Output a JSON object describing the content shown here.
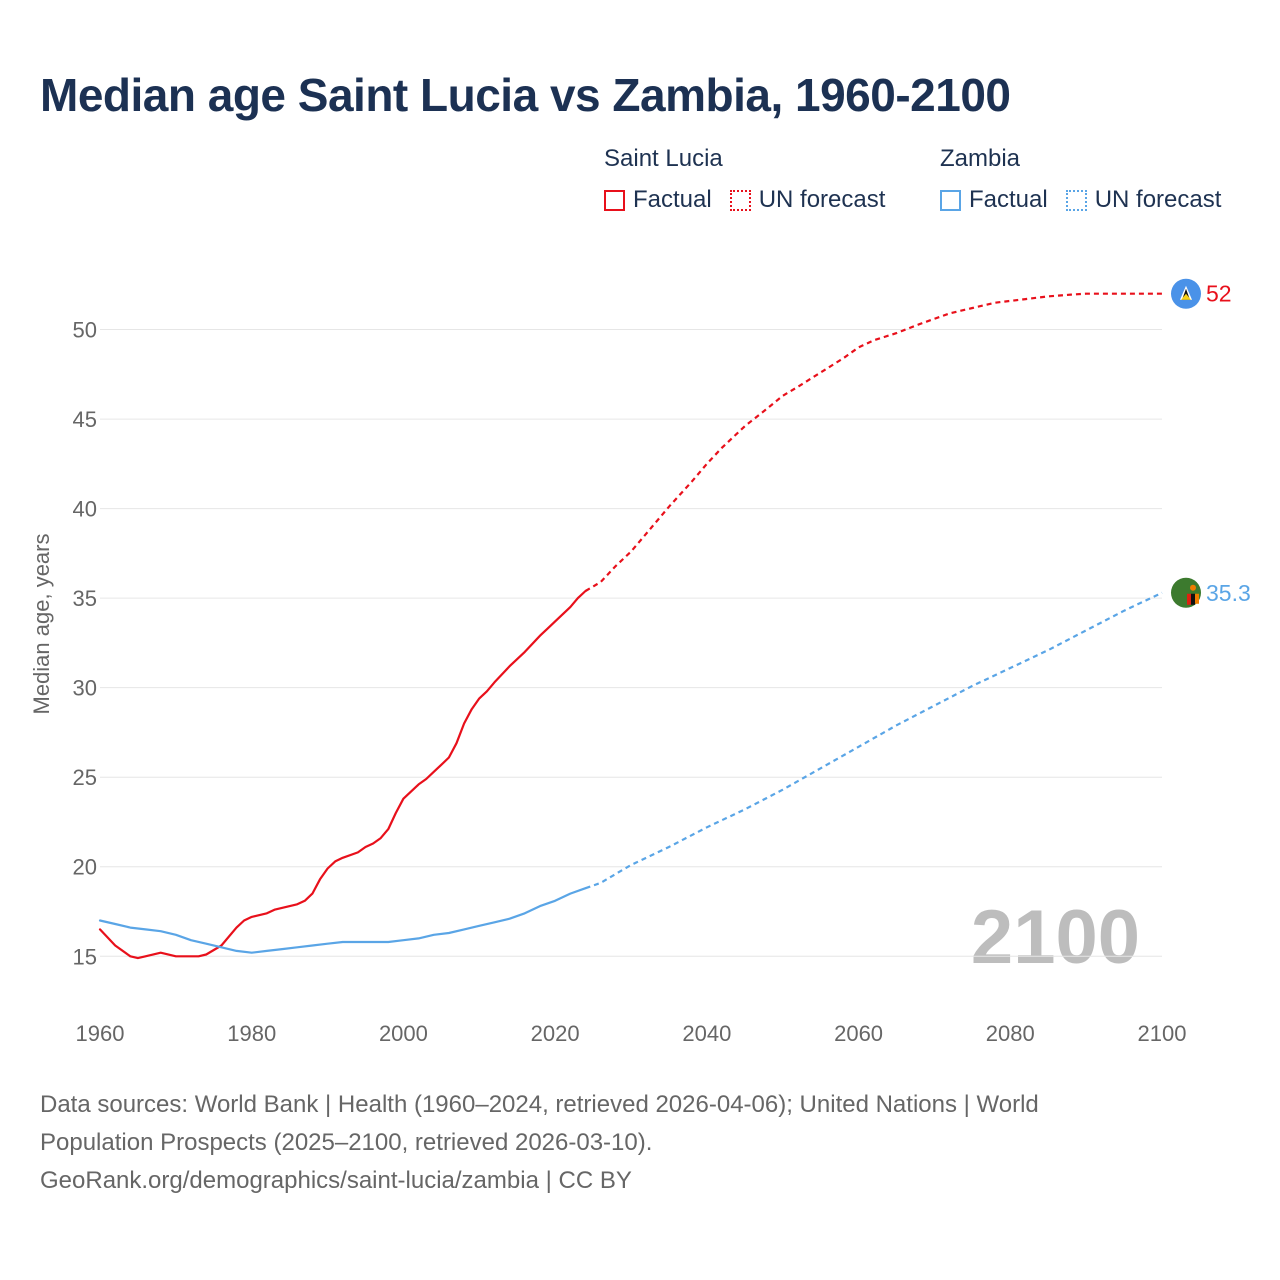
{
  "title": "Median age Saint Lucia vs Zambia, 1960-2100",
  "legend": [
    {
      "name": "Saint Lucia",
      "color": "#e8101b",
      "factual_label": "Factual",
      "forecast_label": "UN forecast"
    },
    {
      "name": "Zambia",
      "color": "#5aa5e6",
      "factual_label": "Factual",
      "forecast_label": "UN forecast"
    }
  ],
  "footer": {
    "line1": "Data sources: World Bank | Health (1960–2024, retrieved 2026-04-06); United Nations | World Population Prospects (2025–2100, retrieved 2026-03-10).",
    "line2": "GeoRank.org/demographics/saint-lucia/zambia | CC BY"
  },
  "chart_data": {
    "type": "line",
    "title": "Median age Saint Lucia vs Zambia, 1960-2100",
    "xlabel": "",
    "ylabel": "Median age, years",
    "xlim": [
      1960,
      2100
    ],
    "ylim": [
      12,
      55
    ],
    "xticks": [
      1960,
      1980,
      2000,
      2020,
      2040,
      2060,
      2080,
      2100
    ],
    "yticks": [
      15,
      20,
      25,
      30,
      35,
      40,
      45,
      50
    ],
    "grid": true,
    "year_watermark": "2100",
    "factual_end_year": 2024,
    "series": [
      {
        "name": "Saint Lucia",
        "color": "#e8101b",
        "end_label": "52",
        "end_marker": "saint-lucia-flag",
        "x": [
          1960,
          1962,
          1964,
          1965,
          1966,
          1968,
          1970,
          1972,
          1973,
          1974,
          1976,
          1978,
          1979,
          1980,
          1982,
          1983,
          1986,
          1987,
          1988,
          1989,
          1990,
          1991,
          1992,
          1994,
          1995,
          1996,
          1997,
          1998,
          1999,
          2000,
          2002,
          2003,
          2004,
          2005,
          2006,
          2007,
          2008,
          2009,
          2010,
          2011,
          2012,
          2014,
          2016,
          2018,
          2019,
          2020,
          2022,
          2023,
          2024,
          2026,
          2028,
          2030,
          2032,
          2035,
          2038,
          2040,
          2042,
          2045,
          2048,
          2050,
          2052,
          2055,
          2058,
          2060,
          2062,
          2065,
          2068,
          2070,
          2072,
          2075,
          2078,
          2080,
          2082,
          2085,
          2088,
          2090,
          2095,
          2098,
          2100
        ],
        "y": [
          16.5,
          15.6,
          15.0,
          14.9,
          15.0,
          15.2,
          15.0,
          15.0,
          15.0,
          15.1,
          15.6,
          16.6,
          17.0,
          17.2,
          17.4,
          17.6,
          17.9,
          18.1,
          18.5,
          19.3,
          19.9,
          20.3,
          20.5,
          20.8,
          21.1,
          21.3,
          21.6,
          22.1,
          23.0,
          23.8,
          24.6,
          24.9,
          25.3,
          25.7,
          26.1,
          26.9,
          28.0,
          28.8,
          29.4,
          29.8,
          30.3,
          31.2,
          32.0,
          32.9,
          33.3,
          33.7,
          34.5,
          35.0,
          35.4,
          35.9,
          36.8,
          37.6,
          38.6,
          40.1,
          41.5,
          42.5,
          43.4,
          44.6,
          45.6,
          46.3,
          46.8,
          47.6,
          48.4,
          49.0,
          49.4,
          49.8,
          50.3,
          50.6,
          50.9,
          51.2,
          51.5,
          51.6,
          51.7,
          51.85,
          51.95,
          52.0,
          52.0,
          52.0,
          52.0
        ]
      },
      {
        "name": "Zambia",
        "color": "#5aa5e6",
        "end_label": "35.3",
        "end_marker": "zambia-flag",
        "x": [
          1960,
          1962,
          1964,
          1966,
          1968,
          1970,
          1972,
          1974,
          1976,
          1978,
          1980,
          1982,
          1984,
          1986,
          1988,
          1990,
          1992,
          1994,
          1996,
          1998,
          2000,
          2002,
          2004,
          2006,
          2008,
          2010,
          2012,
          2014,
          2016,
          2018,
          2020,
          2022,
          2024,
          2026,
          2028,
          2030,
          2035,
          2040,
          2045,
          2050,
          2055,
          2060,
          2065,
          2070,
          2075,
          2080,
          2085,
          2090,
          2095,
          2100
        ],
        "y": [
          17.0,
          16.8,
          16.6,
          16.5,
          16.4,
          16.2,
          15.9,
          15.7,
          15.5,
          15.3,
          15.2,
          15.3,
          15.4,
          15.5,
          15.6,
          15.7,
          15.8,
          15.8,
          15.8,
          15.8,
          15.9,
          16.0,
          16.2,
          16.3,
          16.5,
          16.7,
          16.9,
          17.1,
          17.4,
          17.8,
          18.1,
          18.5,
          18.8,
          19.1,
          19.6,
          20.1,
          21.1,
          22.2,
          23.2,
          24.3,
          25.5,
          26.7,
          27.9,
          29.0,
          30.1,
          31.1,
          32.1,
          33.2,
          34.3,
          35.3
        ]
      }
    ]
  }
}
